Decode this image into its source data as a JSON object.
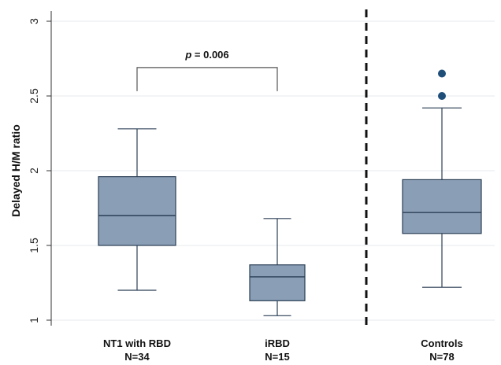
{
  "chart_data": {
    "type": "box",
    "ylabel": "Delayed H/M ratio",
    "ylim": [
      1,
      3
    ],
    "yticks": [
      1,
      1.5,
      2,
      2.5,
      3
    ],
    "yticklabels": [
      "1",
      "1.5",
      "2",
      "2.5",
      "3"
    ],
    "grid": true,
    "colors": {
      "box_fill": "#8a9fb6",
      "box_stroke": "#2b3f55",
      "outlier": "#1f4e79",
      "grid": "#e4e8ec"
    },
    "groups": [
      {
        "name": "NT1 with RBD",
        "n_label": "N=34",
        "whisker_low": 1.2,
        "q1": 1.5,
        "median": 1.7,
        "q3": 1.96,
        "whisker_high": 2.28,
        "outliers": []
      },
      {
        "name": "iRBD",
        "n_label": "N=15",
        "whisker_low": 1.03,
        "q1": 1.13,
        "median": 1.29,
        "q3": 1.37,
        "whisker_high": 1.68,
        "outliers": []
      },
      {
        "name": "Controls",
        "n_label": "N=78",
        "whisker_low": 1.22,
        "q1": 1.58,
        "median": 1.72,
        "q3": 1.94,
        "whisker_high": 2.42,
        "outliers": [
          2.5,
          2.65
        ]
      }
    ],
    "separator": "dashed vertical line between iRBD and Controls",
    "annotation": {
      "p_symbol": "p",
      "p_text": " = 0.006",
      "between_groups": [
        0,
        1
      ],
      "bracket_y": 2.69
    }
  }
}
